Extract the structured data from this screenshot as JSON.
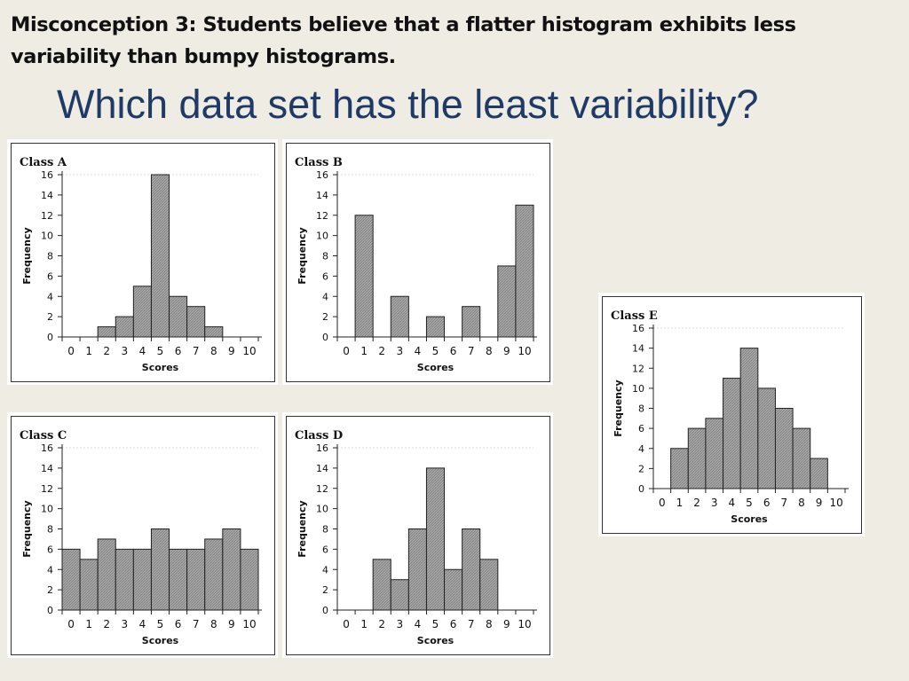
{
  "slide": {
    "misconception": "Misconception 3: Students believe that a flatter histogram exhibits less variability than bumpy histograms.",
    "question": "Which data set has the least variability?"
  },
  "chart_data": [
    {
      "type": "bar",
      "title": "Class A",
      "xlabel": "Scores",
      "ylabel": "Frequency",
      "x": [
        0,
        1,
        2,
        3,
        4,
        5,
        6,
        7,
        8,
        9,
        10
      ],
      "values": [
        0,
        0,
        1,
        2,
        5,
        16,
        4,
        3,
        1,
        0,
        0
      ],
      "xticks": [
        "0",
        "1",
        "2",
        "3",
        "4",
        "5",
        "6",
        "7",
        "8",
        "9",
        "10"
      ],
      "yticks": [
        "0",
        "2",
        "4",
        "6",
        "8",
        "10",
        "12",
        "14",
        "16"
      ],
      "ylim": [
        0,
        16
      ],
      "bar_color": "#9a9a9a"
    },
    {
      "type": "bar",
      "title": "Class B",
      "xlabel": "Scores",
      "ylabel": "Frequency",
      "x": [
        0,
        1,
        2,
        3,
        4,
        5,
        6,
        7,
        8,
        9,
        10
      ],
      "values": [
        0,
        12,
        0,
        4,
        0,
        2,
        0,
        3,
        0,
        7,
        13
      ],
      "xticks": [
        "0",
        "1",
        "2",
        "3",
        "4",
        "5",
        "6",
        "7",
        "8",
        "9",
        "10"
      ],
      "yticks": [
        "0",
        "2",
        "4",
        "6",
        "8",
        "10",
        "12",
        "14",
        "16"
      ],
      "ylim": [
        0,
        16
      ],
      "bar_color": "#9a9a9a"
    },
    {
      "type": "bar",
      "title": "Class C",
      "xlabel": "Scores",
      "ylabel": "Frequency",
      "x": [
        0,
        1,
        2,
        3,
        4,
        5,
        6,
        7,
        8,
        9,
        10
      ],
      "values": [
        6,
        5,
        7,
        6,
        6,
        8,
        6,
        6,
        7,
        8,
        6
      ],
      "xticks": [
        "0",
        "1",
        "2",
        "3",
        "4",
        "5",
        "6",
        "7",
        "8",
        "9",
        "10"
      ],
      "yticks": [
        "0",
        "2",
        "4",
        "6",
        "8",
        "10",
        "12",
        "14",
        "16"
      ],
      "ylim": [
        0,
        16
      ],
      "bar_color": "#9a9a9a"
    },
    {
      "type": "bar",
      "title": "Class D",
      "xlabel": "Scores",
      "ylabel": "Frequency",
      "x": [
        0,
        1,
        2,
        3,
        4,
        5,
        6,
        7,
        8,
        9,
        10
      ],
      "values": [
        0,
        0,
        5,
        3,
        8,
        14,
        4,
        8,
        5,
        0,
        0
      ],
      "xticks": [
        "0",
        "1",
        "2",
        "3",
        "4",
        "5",
        "6",
        "7",
        "8",
        "9",
        "10"
      ],
      "yticks": [
        "0",
        "2",
        "4",
        "6",
        "8",
        "10",
        "12",
        "14",
        "16"
      ],
      "ylim": [
        0,
        16
      ],
      "bar_color": "#9a9a9a"
    },
    {
      "type": "bar",
      "title": "Class E",
      "xlabel": "Scores",
      "ylabel": "Frequency",
      "x": [
        0,
        1,
        2,
        3,
        4,
        5,
        6,
        7,
        8,
        9,
        10
      ],
      "values": [
        0,
        4,
        6,
        7,
        11,
        14,
        10,
        8,
        6,
        3,
        0
      ],
      "xticks": [
        "0",
        "1",
        "2",
        "3",
        "4",
        "5",
        "6",
        "7",
        "8",
        "9",
        "10"
      ],
      "yticks": [
        "0",
        "2",
        "4",
        "6",
        "8",
        "10",
        "12",
        "14",
        "16"
      ],
      "ylim": [
        0,
        16
      ],
      "bar_color": "#9a9a9a"
    }
  ]
}
